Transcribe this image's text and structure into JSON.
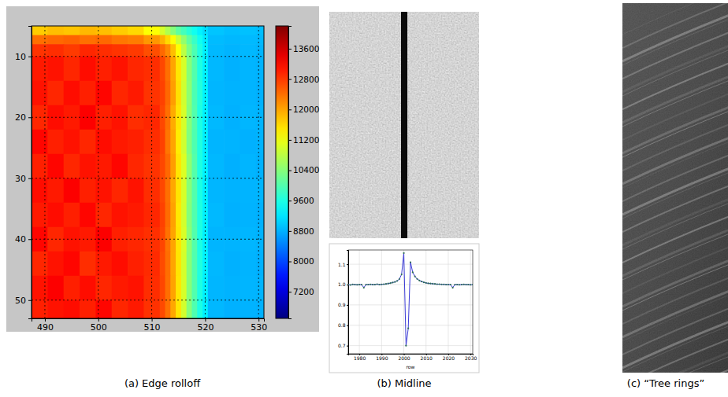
{
  "chart_data": [
    {
      "type": "heatmap",
      "caption": "(a) Edge rolloff",
      "xlim": [
        487.5,
        531
      ],
      "ylim": [
        5,
        53
      ],
      "xticks": [
        490,
        500,
        510,
        520,
        530
      ],
      "yticks": [
        10,
        20,
        30,
        40,
        50
      ],
      "grid": true,
      "x_edges": [
        487.5,
        490.5,
        493.5,
        496.5,
        499.5,
        502.5,
        505.5,
        508.5,
        511.5,
        512.5,
        513.5,
        514.5,
        515.5,
        516.5,
        517.5,
        518.5,
        519.5,
        520.5,
        523.5,
        526.5,
        529.5,
        531
      ],
      "y_edges": [
        5,
        6.5,
        8,
        10,
        14,
        18,
        22,
        26,
        30,
        34,
        38,
        42,
        46,
        50,
        53
      ],
      "cells": [
        [
          11700,
          11800,
          11750,
          11850,
          11800,
          11700,
          11600,
          11300,
          11000,
          10700,
          10400,
          10100,
          9900,
          9700,
          9500,
          9300,
          9150,
          8950,
          8900,
          8920,
          8900
        ],
        [
          12400,
          12450,
          12500,
          12400,
          12450,
          12350,
          12300,
          12100,
          11900,
          11600,
          11300,
          10900,
          10500,
          10100,
          9800,
          9500,
          9250,
          8880,
          8850,
          8870,
          8860
        ],
        [
          12850,
          12900,
          12800,
          12950,
          12900,
          12850,
          12800,
          12650,
          12450,
          12200,
          11800,
          11300,
          10800,
          10300,
          9950,
          9600,
          9300,
          8860,
          8820,
          8850,
          8830
        ],
        [
          13050,
          13100,
          12950,
          13150,
          13000,
          13100,
          12950,
          12900,
          12700,
          12400,
          12000,
          11500,
          11000,
          10400,
          10000,
          9600,
          9300,
          8850,
          8800,
          8830,
          8810
        ],
        [
          13100,
          12950,
          13150,
          13000,
          13200,
          12950,
          13050,
          12850,
          12750,
          12450,
          12050,
          11550,
          10950,
          10450,
          9950,
          9650,
          9320,
          8840,
          8810,
          8820,
          8800
        ],
        [
          12950,
          13150,
          13050,
          13250,
          13000,
          13100,
          12900,
          12950,
          12700,
          12400,
          11950,
          11500,
          11000,
          10400,
          10000,
          9600,
          9300,
          8860,
          8800,
          8840,
          8820
        ],
        [
          13200,
          13000,
          13100,
          12950,
          13150,
          13050,
          13000,
          12900,
          12750,
          12350,
          12000,
          11450,
          10950,
          10350,
          9980,
          9620,
          9280,
          8830,
          8820,
          8800,
          8810
        ],
        [
          13000,
          13200,
          12950,
          13100,
          13050,
          13200,
          12950,
          12850,
          12700,
          12450,
          12050,
          11500,
          11050,
          10450,
          10020,
          9600,
          9310,
          8850,
          8790,
          8830,
          8800
        ],
        [
          13150,
          13050,
          13250,
          13000,
          13100,
          12950,
          13100,
          12900,
          12700,
          12400,
          11980,
          11520,
          11000,
          10400,
          10000,
          9580,
          9290,
          8840,
          8810,
          8820,
          8830
        ],
        [
          13050,
          13150,
          13000,
          13200,
          12950,
          13100,
          13050,
          12950,
          12750,
          12420,
          12020,
          11480,
          10980,
          10380,
          9990,
          9610,
          9300,
          8860,
          8800,
          8810,
          8800
        ],
        [
          13200,
          12950,
          13100,
          13050,
          13250,
          13000,
          12950,
          12880,
          12720,
          12380,
          12000,
          11500,
          11020,
          10420,
          10010,
          9590,
          9290,
          8830,
          8820,
          8840,
          8810
        ],
        [
          12950,
          13100,
          13200,
          12900,
          13050,
          13150,
          13000,
          12920,
          12680,
          12410,
          11990,
          11510,
          10990,
          10410,
          9990,
          9620,
          9310,
          8850,
          8800,
          8820,
          8800
        ],
        [
          13100,
          13250,
          13000,
          13150,
          12950,
          13050,
          13100,
          12900,
          12710,
          12400,
          12010,
          11490,
          11000,
          10400,
          10000,
          9600,
          9300,
          8840,
          8810,
          8830,
          8820
        ],
        [
          13000,
          13100,
          13150,
          13000,
          13200,
          12950,
          13050,
          12870,
          12690,
          12390,
          11980,
          11500,
          10970,
          10390,
          9980,
          9590,
          9280,
          8850,
          8800,
          8810,
          8800
        ]
      ],
      "colorbar_lim": [
        6500,
        14200
      ],
      "colorbar_ticks": [
        7200,
        8000,
        8800,
        9600,
        10400,
        11200,
        12000,
        12800,
        13600
      ]
    },
    {
      "type": "line",
      "caption": "(b) Midline",
      "x_label": "row",
      "xlim": [
        1975,
        2031
      ],
      "ylim": [
        0.66,
        1.17
      ],
      "xticks": [
        1980,
        1990,
        2000,
        2010,
        2020,
        2030
      ],
      "yticks": [
        0.7,
        0.8,
        0.9,
        {
          "value": 1,
          "label": "1.0"
        },
        1.1
      ],
      "grid": true,
      "x": [
        1975,
        1976,
        1977,
        1978,
        1979,
        1980,
        1981,
        1982,
        1983,
        1984,
        1985,
        1986,
        1987,
        1988,
        1989,
        1990,
        1991,
        1992,
        1993,
        1994,
        1995,
        1996,
        1997,
        1998,
        1999,
        2000,
        2001,
        2002,
        2003,
        2004,
        2005,
        2006,
        2007,
        2008,
        2009,
        2010,
        2011,
        2012,
        2013,
        2014,
        2015,
        2016,
        2017,
        2018,
        2019,
        2020,
        2021,
        2022,
        2023,
        2024,
        2025,
        2026,
        2027,
        2028,
        2029,
        2030,
        2031
      ],
      "series": [
        {
          "color": "#3b3bd6",
          "marker": "circle",
          "line_style": "solid",
          "values": [
            1.0,
            0.998,
            1.001,
            1.0,
            0.999,
            1.0,
            1.0,
            0.985,
            1.0,
            1.0,
            1.001,
            1.0,
            1.0,
            1.002,
            1.0,
            1.001,
            1.002,
            1.003,
            1.005,
            1.007,
            1.01,
            1.013,
            1.018,
            1.027,
            1.05,
            1.155,
            0.7,
            0.785,
            1.11,
            1.06,
            1.04,
            1.028,
            1.02,
            1.015,
            1.011,
            1.008,
            1.006,
            1.005,
            1.004,
            1.003,
            1.002,
            1.002,
            1.001,
            1.001,
            1.0,
            1.0,
            1.0,
            0.985,
            1.0,
            1.0,
            0.999,
            1.0,
            1.001,
            1.0,
            1.0,
            0.999,
            1.0
          ]
        }
      ]
    }
  ],
  "images": [
    {
      "caption": "(c) “Tree rings”"
    }
  ]
}
